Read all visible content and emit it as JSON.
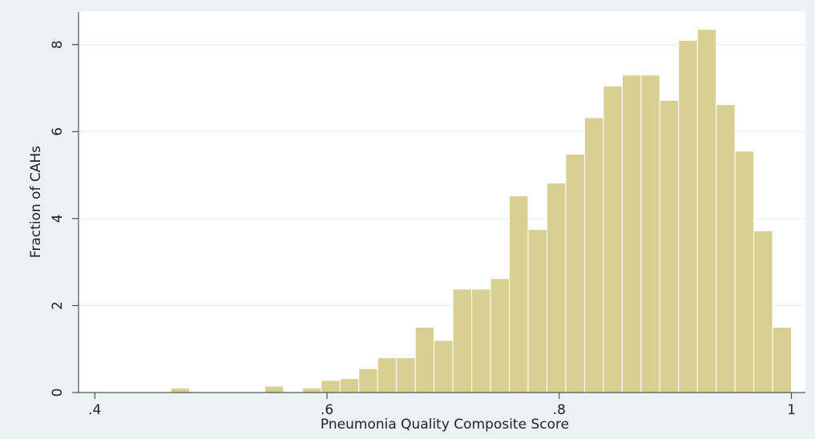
{
  "chart_data": {
    "type": "histogram",
    "x_label": "Pneumonia Quality Composite Score",
    "y_label": "Fraction of CAHs",
    "bins": [
      0.4654,
      0.4816,
      0.4978,
      0.514,
      0.5302,
      0.5464,
      0.5626,
      0.5788,
      0.595,
      0.6112,
      0.6274,
      0.6436,
      0.6598,
      0.676,
      0.6922,
      0.7084,
      0.7246,
      0.7408,
      0.757,
      0.7732,
      0.7894,
      0.8056,
      0.8218,
      0.838,
      0.8542,
      0.8704,
      0.8866,
      0.9028,
      0.919,
      0.9352,
      0.9514,
      0.9676,
      0.9838,
      1.0
    ],
    "values": [
      0.1,
      0,
      0,
      0,
      0,
      0.15,
      0,
      0.1,
      0.28,
      0.32,
      0.55,
      0.8,
      0.8,
      1.5,
      1.2,
      2.38,
      2.38,
      2.62,
      4.52,
      3.75,
      4.82,
      5.48,
      6.32,
      7.05,
      7.3,
      7.3,
      6.72,
      8.1,
      8.35,
      6.62,
      5.55,
      3.72,
      1.5
    ],
    "color": "#d8cf92",
    "xlim": [
      0.386,
      1.012
    ],
    "xticks": [
      {
        "value": 0.4,
        "label": ".4"
      },
      {
        "value": 0.6,
        "label": ".6"
      },
      {
        "value": 0.8,
        "label": ".8"
      },
      1
    ],
    "ylim": [
      0,
      8.75
    ],
    "yticks": [
      0,
      2,
      4,
      6,
      8
    ],
    "grid": true
  }
}
